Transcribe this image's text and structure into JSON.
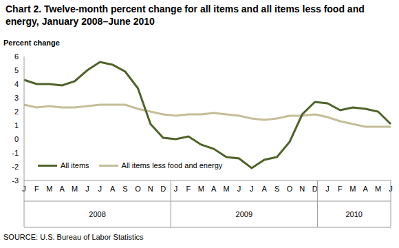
{
  "chart_data": {
    "type": "line",
    "title": "Chart 2. Twelve-month percent change for all items and all items less food and energy, January 2008–June 2010",
    "y_label": "Percent change",
    "source": "SOURCE: U.S. Bureau of Labor Statistics",
    "categories": [
      "J",
      "F",
      "M",
      "A",
      "M",
      "J",
      "J",
      "A",
      "S",
      "O",
      "N",
      "D",
      "J",
      "F",
      "M",
      "A",
      "M",
      "J",
      "J",
      "A",
      "S",
      "O",
      "N",
      "D",
      "J",
      "F",
      "M",
      "A",
      "M",
      "J"
    ],
    "x_groups": [
      {
        "label": "2008",
        "span": 12
      },
      {
        "label": "2009",
        "span": 12
      },
      {
        "label": "2010",
        "span": 6
      }
    ],
    "series": [
      {
        "name": "All items",
        "color": "#4f6228",
        "values": [
          4.3,
          4.0,
          4.0,
          3.9,
          4.2,
          5.0,
          5.6,
          5.4,
          4.9,
          3.7,
          1.1,
          0.1,
          0.0,
          0.2,
          -0.4,
          -0.7,
          -1.3,
          -1.4,
          -2.1,
          -1.5,
          -1.3,
          -0.2,
          1.8,
          2.7,
          2.6,
          2.1,
          2.3,
          2.2,
          2.0,
          1.1
        ]
      },
      {
        "name": "All items less food and energy",
        "color": "#c4bd97",
        "values": [
          2.5,
          2.3,
          2.4,
          2.3,
          2.3,
          2.4,
          2.5,
          2.5,
          2.5,
          2.2,
          2.0,
          1.8,
          1.7,
          1.8,
          1.8,
          1.9,
          1.8,
          1.7,
          1.5,
          1.4,
          1.5,
          1.7,
          1.7,
          1.8,
          1.6,
          1.3,
          1.1,
          0.9,
          0.9,
          0.9
        ]
      }
    ],
    "ylim": [
      -3,
      6
    ],
    "yticks": [
      -3,
      -2,
      -1,
      0,
      1,
      2,
      3,
      4,
      5,
      6
    ],
    "grid": false,
    "legend": "bottom-left"
  }
}
